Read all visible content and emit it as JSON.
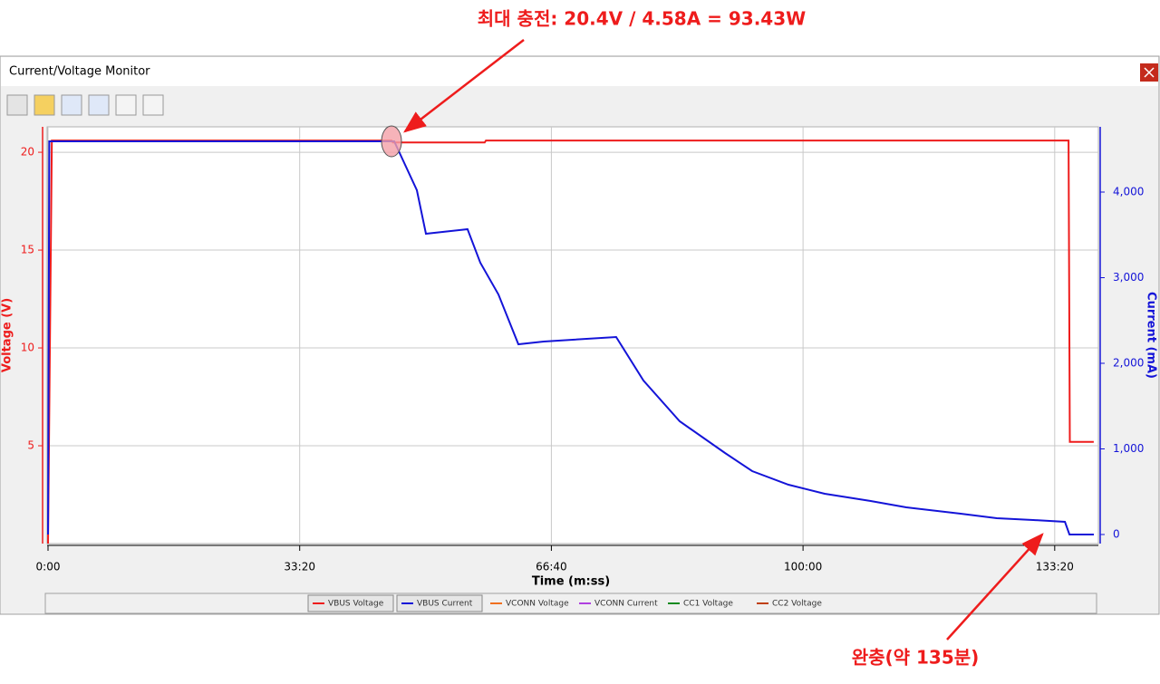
{
  "window_title": "Current/Voltage Monitor",
  "annotations": {
    "top": "최대 충전: 20.4V / 4.58A  = 93.43W",
    "bottom": "완충(약 135분)"
  },
  "chart_data": {
    "type": "line",
    "xlabel": "Time (m:ss)",
    "ylabel": "Voltage (V)",
    "y2label": "Current (mA)",
    "xlim": [
      0,
      8347
    ],
    "xticks": [
      {
        "value": 0,
        "label": "0:00"
      },
      {
        "value": 2000,
        "label": "33:20"
      },
      {
        "value": 4000,
        "label": "66:40"
      },
      {
        "value": 6000,
        "label": "100:00"
      },
      {
        "value": 8000,
        "label": "133:20"
      }
    ],
    "ylim": [
      0,
      21.3
    ],
    "yticks": [
      5,
      10,
      15,
      20
    ],
    "y2lim": [
      -106,
      4762
    ],
    "y2ticks": [
      0,
      {
        "value": 1000,
        "label": "1,000"
      },
      {
        "value": 2000,
        "label": "2,000"
      },
      {
        "value": 3000,
        "label": "3,000"
      },
      {
        "value": 4000,
        "label": "4,000"
      }
    ],
    "grid": true,
    "series": [
      {
        "name": "VBUS Voltage",
        "color": "#ee1c1c",
        "axis": "y",
        "x": [
          0,
          30,
          2730,
          2740,
          3470,
          3480,
          8110,
          8120,
          8310
        ],
        "values": [
          0,
          20.6,
          20.6,
          20.5,
          20.5,
          20.6,
          20.6,
          5.2,
          5.2
        ]
      },
      {
        "name": "VBUS Current",
        "color": "#1414d8",
        "axis": "y2",
        "x": [
          0,
          10,
          2751,
          2931,
          3003,
          3334,
          3435,
          3579,
          3738,
          3939,
          4515,
          4732,
          5020,
          5380,
          5596,
          5884,
          6172,
          6532,
          6820,
          7252,
          7540,
          7829,
          8081,
          8117,
          8311
        ],
        "values": [
          0,
          4593,
          4593,
          4021,
          3513,
          3566,
          3175,
          2804,
          2222,
          2254,
          2307,
          1799,
          1323,
          952,
          741,
          582,
          476,
          392,
          317,
          243,
          190,
          169,
          148,
          0,
          0
        ]
      },
      {
        "name": "VCONN Voltage",
        "color": "#f07020",
        "axis": "y",
        "x": [],
        "values": []
      },
      {
        "name": "VCONN Current",
        "color": "#b040e0",
        "axis": "y2",
        "x": [],
        "values": []
      },
      {
        "name": "CC1 Voltage",
        "color": "#108a20",
        "axis": "y",
        "x": [],
        "values": []
      },
      {
        "name": "CC2 Voltage",
        "color": "#c04010",
        "axis": "y",
        "x": [],
        "values": []
      }
    ]
  }
}
